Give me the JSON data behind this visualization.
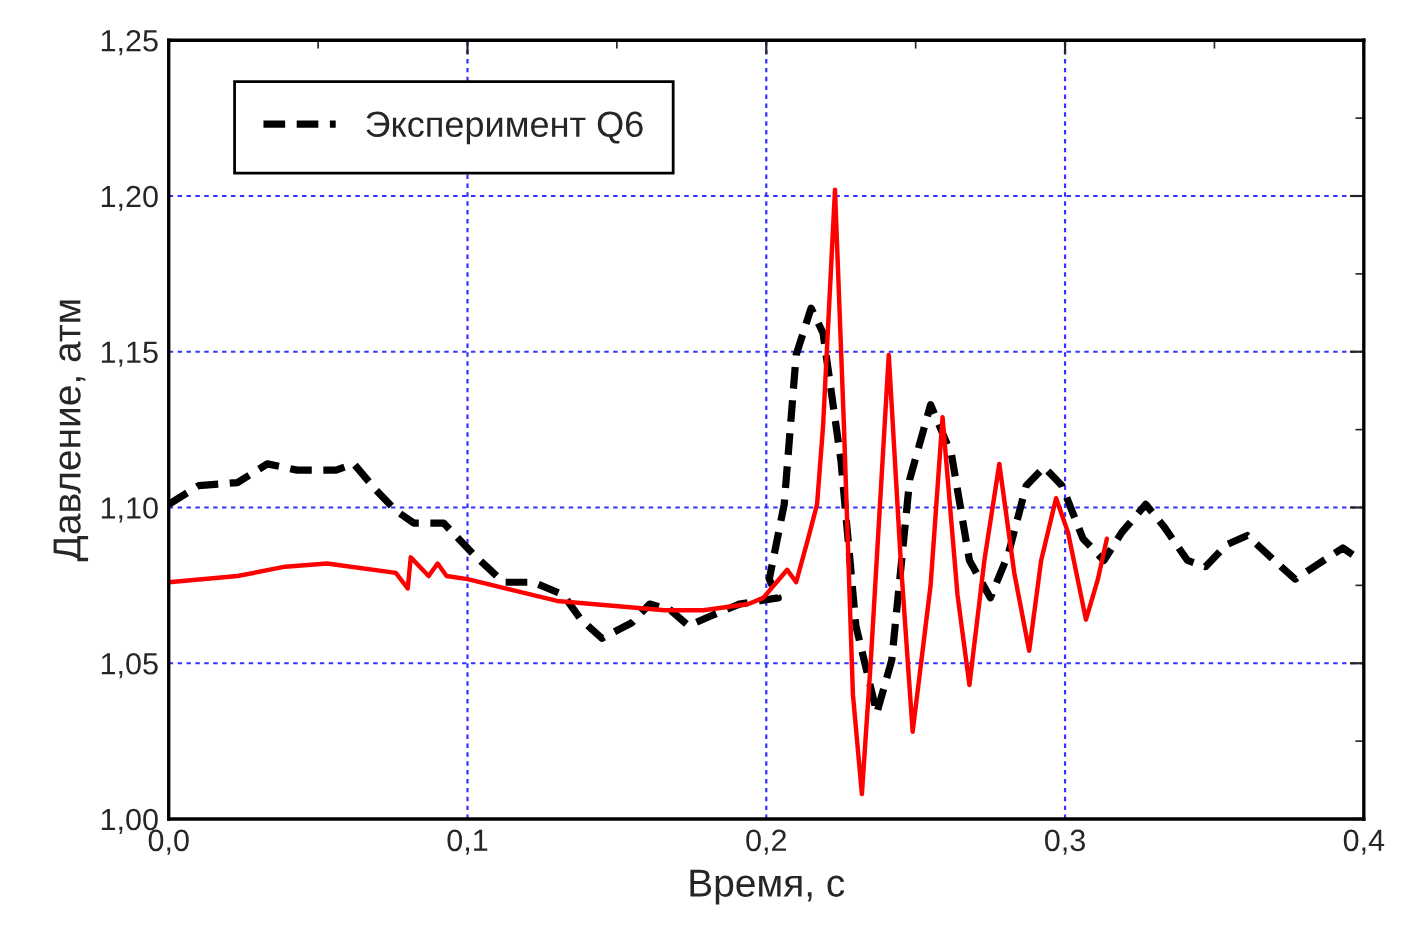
{
  "chart_data": {
    "type": "line",
    "xlabel": "Время, с",
    "ylabel": "Давление, атм",
    "xlim": [
      0,
      0.4
    ],
    "ylim": [
      1.0,
      1.25
    ],
    "xticks": [
      {
        "value": 0,
        "label": "0,0"
      },
      {
        "value": 0.1,
        "label": "0,1"
      },
      {
        "value": 0.2,
        "label": "0,2"
      },
      {
        "value": 0.3,
        "label": "0,3"
      },
      {
        "value": 0.4,
        "label": "0,4"
      }
    ],
    "yticks": [
      {
        "value": 1.0,
        "label": "1,00"
      },
      {
        "value": 1.05,
        "label": "1,05"
      },
      {
        "value": 1.1,
        "label": "1,10"
      },
      {
        "value": 1.15,
        "label": "1,15"
      },
      {
        "value": 1.2,
        "label": "1,20"
      },
      {
        "value": 1.25,
        "label": "1,25"
      }
    ],
    "grid": true,
    "legend": "top left",
    "marker": "none",
    "series": [
      {
        "name": "Эксперимент Q6",
        "color": "#000000",
        "line_style": "dashed",
        "x": [
          0.0,
          0.01,
          0.023,
          0.033,
          0.043,
          0.056,
          0.062,
          0.069,
          0.076,
          0.082,
          0.092,
          0.102,
          0.112,
          0.122,
          0.132,
          0.138,
          0.145,
          0.155,
          0.161,
          0.168,
          0.174,
          0.181,
          0.191,
          0.204,
          0.201,
          0.206,
          0.21,
          0.215,
          0.219,
          0.225,
          0.23,
          0.237,
          0.242,
          0.248,
          0.255,
          0.262,
          0.268,
          0.275,
          0.281,
          0.287,
          0.293,
          0.299,
          0.306,
          0.313,
          0.319,
          0.327,
          0.333,
          0.341,
          0.347,
          0.354,
          0.361,
          0.37,
          0.377,
          0.385,
          0.393,
          0.399
        ],
        "values": [
          1.101,
          1.107,
          1.108,
          1.114,
          1.112,
          1.112,
          1.114,
          1.106,
          1.099,
          1.095,
          1.095,
          1.085,
          1.076,
          1.076,
          1.072,
          1.064,
          1.058,
          1.063,
          1.069,
          1.067,
          1.062,
          1.065,
          1.069,
          1.071,
          1.077,
          1.101,
          1.149,
          1.164,
          1.156,
          1.115,
          1.062,
          1.034,
          1.051,
          1.109,
          1.133,
          1.117,
          1.083,
          1.071,
          1.085,
          1.107,
          1.113,
          1.107,
          1.09,
          1.083,
          1.092,
          1.101,
          1.094,
          1.083,
          1.081,
          1.088,
          1.091,
          1.083,
          1.077,
          1.082,
          1.087,
          1.083
        ]
      },
      {
        "color": "#ff0000",
        "line_style": "solid",
        "x": [
          0.0,
          0.023,
          0.039,
          0.053,
          0.076,
          0.076,
          0.08,
          0.081,
          0.087,
          0.09,
          0.093,
          0.1,
          0.13,
          0.166,
          0.179,
          0.194,
          0.199,
          0.207,
          0.21,
          0.214,
          0.217,
          0.219,
          0.223,
          0.226,
          0.229,
          0.232,
          0.235,
          0.241,
          0.245,
          0.249,
          0.255,
          0.259,
          0.264,
          0.268,
          0.273,
          0.278,
          0.283,
          0.288,
          0.292,
          0.297,
          0.301,
          0.307,
          0.311,
          0.314
        ],
        "values": [
          1.076,
          1.078,
          1.081,
          1.082,
          1.079,
          1.079,
          1.074,
          1.084,
          1.078,
          1.082,
          1.078,
          1.077,
          1.07,
          1.067,
          1.067,
          1.069,
          1.071,
          1.08,
          1.076,
          1.09,
          1.101,
          1.126,
          1.202,
          1.126,
          1.04,
          1.008,
          1.051,
          1.149,
          1.083,
          1.028,
          1.075,
          1.129,
          1.072,
          1.043,
          1.083,
          1.114,
          1.079,
          1.054,
          1.083,
          1.103,
          1.092,
          1.064,
          1.077,
          1.09
        ]
      }
    ]
  }
}
